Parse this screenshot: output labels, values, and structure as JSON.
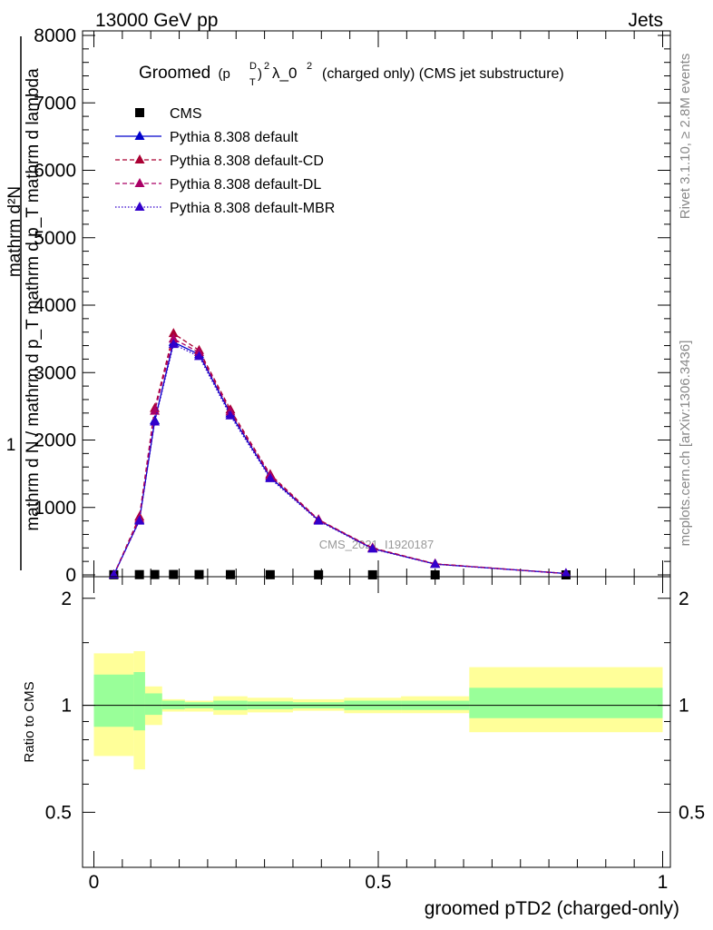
{
  "header": {
    "left": "13000 GeV pp",
    "right": "Jets"
  },
  "side_labels": {
    "rivet": "Rivet 3.1.10, ≥ 2.8M events",
    "mcplots": "mcplots.cern.ch [arXiv:1306.3436]"
  },
  "watermark": "CMS_2021_I1920187",
  "chart_data": [
    {
      "type": "line",
      "title_main": "Groomed",
      "title_sym": "(p",
      "title_sub": "T",
      "title_sup": "D",
      "title_pow": "2",
      "title_lambda": "λ_0",
      "title_lambda_pow": "2",
      "title_rest": "(charged only) (CMS jet substructure)",
      "ylabel_numerator": "mathrm d²N",
      "ylabel_denominator": "mathrm d N / mathrm d p_T mathrm d p_T mathrm d lambda",
      "ylabel_one": "1",
      "xlim": [
        0,
        1
      ],
      "ylim": [
        0,
        8000
      ],
      "yticks": [
        0,
        1000,
        2000,
        3000,
        4000,
        5000,
        6000,
        7000,
        8000
      ],
      "ytick_labels": [
        "0",
        "1000",
        "2000",
        "3000",
        "4000",
        "5000",
        "6000",
        "7000",
        "8000"
      ],
      "legend_position": "top-left",
      "legend": [
        {
          "name": "CMS",
          "color": "#000000",
          "marker": "square",
          "dash": "none"
        },
        {
          "name": "Pythia 8.308 default",
          "color": "#0000cc",
          "marker": "triangle",
          "dash": "solid"
        },
        {
          "name": "Pythia 8.308 default-CD",
          "color": "#aa0033",
          "marker": "triangle",
          "dash": "dashed"
        },
        {
          "name": "Pythia 8.308 default-DL",
          "color": "#aa0066",
          "marker": "triangle",
          "dash": "dashed"
        },
        {
          "name": "Pythia 8.308 default-MBR",
          "color": "#3300cc",
          "marker": "triangle",
          "dash": "dotted"
        }
      ],
      "x": [
        0.035,
        0.08,
        0.107,
        0.14,
        0.185,
        0.24,
        0.31,
        0.395,
        0.49,
        0.6,
        0.83
      ],
      "series": [
        {
          "name": "CMS",
          "values": [
            2,
            4,
            5,
            6,
            5,
            4,
            3,
            2,
            1,
            0.5,
            0.1
          ]
        },
        {
          "name": "Pythia 8.308 default",
          "values": [
            0,
            810,
            2290,
            3450,
            3270,
            2390,
            1450,
            810,
            390,
            160,
            20
          ]
        },
        {
          "name": "Pythia 8.308 default-CD",
          "values": [
            0,
            860,
            2470,
            3580,
            3330,
            2450,
            1490,
            820,
            400,
            165,
            20
          ]
        },
        {
          "name": "Pythia 8.308 default-DL",
          "values": [
            0,
            830,
            2430,
            3500,
            3300,
            2420,
            1470,
            815,
            395,
            162,
            20
          ]
        },
        {
          "name": "Pythia 8.308 default-MBR",
          "values": [
            0,
            800,
            2270,
            3420,
            3240,
            2360,
            1430,
            800,
            385,
            158,
            20
          ]
        }
      ]
    },
    {
      "type": "area",
      "ylabel": "Ratio to CMS",
      "xlabel": "groomed pTD2 (charged-only)",
      "xlim": [
        0,
        1
      ],
      "ylim": [
        0.35,
        2.3
      ],
      "xticks": [
        0,
        0.5,
        1
      ],
      "xtick_labels": [
        "0",
        "0.5",
        "1"
      ],
      "yticks": [
        0.5,
        1,
        2
      ],
      "ytick_labels": [
        "0.5",
        "1",
        "2"
      ],
      "bin_edges": [
        0,
        0.07,
        0.09,
        0.12,
        0.16,
        0.21,
        0.27,
        0.35,
        0.44,
        0.54,
        0.66,
        1.0
      ],
      "band_inner_low": [
        0.87,
        0.85,
        0.94,
        0.975,
        0.98,
        0.97,
        0.975,
        0.98,
        0.97,
        0.97,
        0.92
      ],
      "band_inner_high": [
        1.22,
        1.24,
        1.08,
        1.03,
        1.02,
        1.03,
        1.025,
        1.02,
        1.03,
        1.03,
        1.12
      ],
      "band_outer_low": [
        0.72,
        0.66,
        0.88,
        0.96,
        0.96,
        0.94,
        0.955,
        0.965,
        0.95,
        0.95,
        0.84
      ],
      "band_outer_high": [
        1.4,
        1.42,
        1.13,
        1.04,
        1.03,
        1.06,
        1.05,
        1.04,
        1.05,
        1.06,
        1.28
      ],
      "inner_color": "#99ff99",
      "outer_color": "#ffff99"
    }
  ]
}
